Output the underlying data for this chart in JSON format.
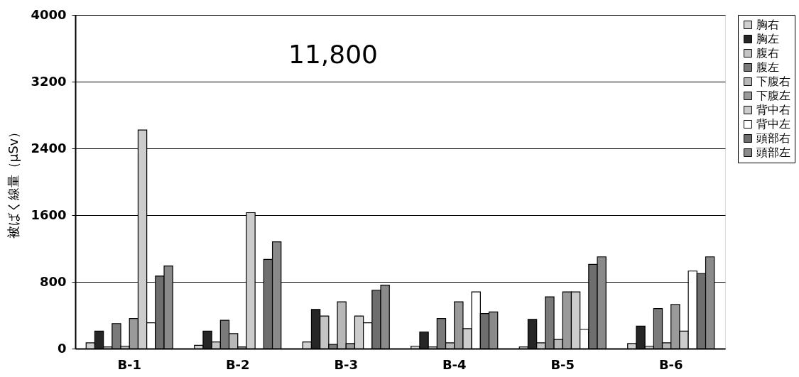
{
  "chart_data": {
    "type": "bar",
    "ylabel": "被ばく線量（μSv）",
    "categories": [
      "B-1",
      "B-2",
      "B-3",
      "B-4",
      "B-5",
      "B-6"
    ],
    "series": [
      {
        "name": "胸右",
        "color": "#d0d0d0",
        "values": [
          70,
          40,
          80,
          30,
          20,
          60
        ]
      },
      {
        "name": "胸左",
        "color": "#262626",
        "values": [
          210,
          210,
          470,
          200,
          350,
          270
        ]
      },
      {
        "name": "腹右",
        "color": "#c4c4c4",
        "values": [
          20,
          80,
          390,
          20,
          70,
          30
        ]
      },
      {
        "name": "腹左",
        "color": "#7a7a7a",
        "values": [
          300,
          340,
          50,
          360,
          620,
          480
        ]
      },
      {
        "name": "下腹右",
        "color": "#b8b8b8",
        "values": [
          30,
          180,
          560,
          70,
          110,
          70
        ]
      },
      {
        "name": "下腹左",
        "color": "#9a9a9a",
        "values": [
          360,
          20,
          60,
          560,
          680,
          530
        ]
      },
      {
        "name": "背中右",
        "color": "#cccccc",
        "values": [
          2620,
          1630,
          390,
          240,
          680,
          210
        ]
      },
      {
        "name": "背中左",
        "color": "#ffffff",
        "values": [
          310,
          null,
          310,
          680,
          230,
          930
        ]
      },
      {
        "name": "頭部右",
        "color": "#6e6e6e",
        "values": [
          870,
          1070,
          700,
          420,
          1010,
          900
        ]
      },
      {
        "name": "頭部左",
        "color": "#8a8a8a",
        "values": [
          990,
          1280,
          760,
          440,
          1100,
          1100
        ]
      }
    ],
    "ylim": [
      0,
      4000
    ],
    "yticks": [
      0,
      800,
      1600,
      2400,
      3200,
      4000
    ],
    "grid": "y",
    "legend": "right",
    "annotations": [
      "11,800"
    ]
  }
}
